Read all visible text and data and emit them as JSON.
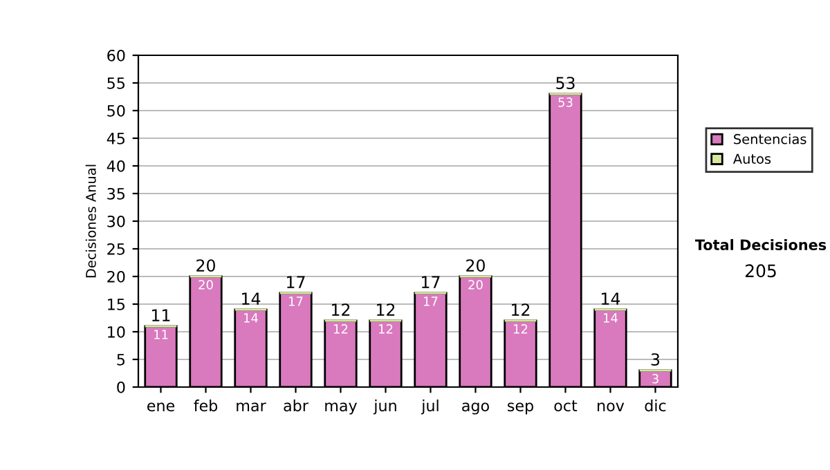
{
  "chart_data": {
    "type": "bar",
    "stacked": true,
    "ylabel": "Decisiones Anual",
    "categories": [
      "ene",
      "feb",
      "mar",
      "abr",
      "may",
      "jun",
      "jul",
      "ago",
      "sep",
      "oct",
      "nov",
      "dic"
    ],
    "series": [
      {
        "name": "Sentencias",
        "color": "#d979be",
        "values": [
          11,
          20,
          14,
          17,
          12,
          12,
          17,
          20,
          12,
          53,
          14,
          3
        ],
        "value_labels": [
          "11",
          "20",
          "14",
          "17",
          "12",
          "12",
          "17",
          "20",
          "12",
          "53",
          "14",
          "3"
        ]
      },
      {
        "name": "Autos",
        "color": "#d6e8a0",
        "values": [
          0,
          0,
          0,
          0,
          0,
          0,
          0,
          0,
          0,
          0,
          0,
          0
        ]
      }
    ],
    "totals": [
      "11",
      "20",
      "14",
      "17",
      "12",
      "12",
      "17",
      "20",
      "12",
      "53",
      "14",
      "3"
    ],
    "ylim": [
      0,
      60
    ],
    "yticks": [
      0,
      5,
      10,
      15,
      20,
      25,
      30,
      35,
      40,
      45,
      50,
      55,
      60
    ],
    "grid": "y",
    "legend": "right",
    "annotations": [
      "Total Decisiones",
      "205"
    ]
  }
}
